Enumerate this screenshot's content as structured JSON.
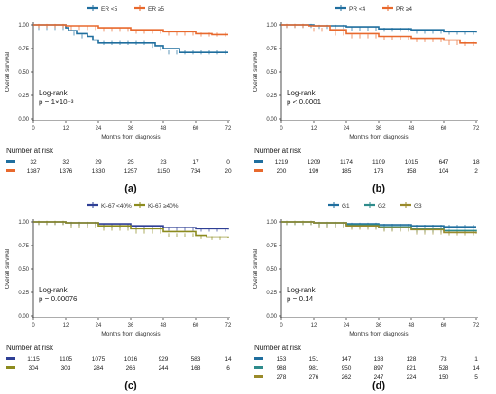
{
  "chart_data": [
    {
      "panel": "(a)",
      "type": "line",
      "title": "",
      "xlabel": "Months from diagnosis",
      "ylabel": "Overall survival",
      "xlim": [
        0,
        72
      ],
      "ylim": [
        0,
        1
      ],
      "xticks": [
        "0",
        "12",
        "24",
        "36",
        "48",
        "60",
        "72"
      ],
      "yticks": [
        "0.00",
        "0.25",
        "0.50",
        "0.75",
        "1.00"
      ],
      "legend_position": "top",
      "annotation": [
        "Log-rank",
        "p = 1×10⁻³"
      ],
      "risk_table_title": "Number at risk",
      "series": [
        {
          "name": "ER <5",
          "color": "#1f6e9e",
          "points": [
            [
              0,
              1.0
            ],
            [
              12,
              0.97
            ],
            [
              13,
              0.94
            ],
            [
              16,
              0.91
            ],
            [
              20,
              0.88
            ],
            [
              22,
              0.84
            ],
            [
              24,
              0.81
            ],
            [
              42,
              0.81
            ],
            [
              45,
              0.78
            ],
            [
              48,
              0.75
            ],
            [
              54,
              0.71
            ],
            [
              72,
              0.71
            ]
          ],
          "at_risk": [
            "32",
            "32",
            "29",
            "25",
            "23",
            "17",
            "0"
          ]
        },
        {
          "name": "ER ≥5",
          "color": "#e8692d",
          "points": [
            [
              0,
              1.0
            ],
            [
              12,
              0.99
            ],
            [
              24,
              0.97
            ],
            [
              36,
              0.95
            ],
            [
              48,
              0.93
            ],
            [
              60,
              0.91
            ],
            [
              66,
              0.9
            ],
            [
              72,
              0.9
            ]
          ],
          "at_risk": [
            "1387",
            "1376",
            "1330",
            "1257",
            "1150",
            "734",
            "20"
          ]
        }
      ]
    },
    {
      "panel": "(b)",
      "type": "line",
      "title": "",
      "xlabel": "Months from diagnosis",
      "ylabel": "Overall survival",
      "xlim": [
        0,
        72
      ],
      "ylim": [
        0,
        1
      ],
      "xticks": [
        "0",
        "12",
        "24",
        "36",
        "48",
        "60",
        "72"
      ],
      "yticks": [
        "0.00",
        "0.25",
        "0.50",
        "0.75",
        "1.00"
      ],
      "legend_position": "top",
      "annotation": [
        "Log-rank",
        "p < 0.0001"
      ],
      "risk_table_title": "Number at risk",
      "series": [
        {
          "name": "PR <4",
          "color": "#1f6e9e",
          "points": [
            [
              0,
              1.0
            ],
            [
              12,
              0.99
            ],
            [
              24,
              0.98
            ],
            [
              36,
              0.96
            ],
            [
              48,
              0.95
            ],
            [
              60,
              0.93
            ],
            [
              72,
              0.92
            ]
          ],
          "at_risk": [
            "1219",
            "1209",
            "1174",
            "1109",
            "1015",
            "647",
            "18"
          ]
        },
        {
          "name": "PR ≥4",
          "color": "#e8692d",
          "points": [
            [
              0,
              1.0
            ],
            [
              10,
              0.99
            ],
            [
              18,
              0.95
            ],
            [
              24,
              0.91
            ],
            [
              36,
              0.88
            ],
            [
              48,
              0.86
            ],
            [
              60,
              0.84
            ],
            [
              66,
              0.81
            ],
            [
              72,
              0.8
            ]
          ],
          "at_risk": [
            "200",
            "199",
            "185",
            "173",
            "158",
            "104",
            "2"
          ]
        }
      ]
    },
    {
      "panel": "(c)",
      "type": "line",
      "title": "",
      "xlabel": "Months from diagnosis",
      "ylabel": "Overall survival",
      "xlim": [
        0,
        72
      ],
      "ylim": [
        0,
        1
      ],
      "xticks": [
        "0",
        "12",
        "24",
        "36",
        "48",
        "60",
        "72"
      ],
      "yticks": [
        "0.00",
        "0.25",
        "0.50",
        "0.75",
        "1.00"
      ],
      "legend_position": "top",
      "annotation": [
        "Log-rank",
        "p = 0.00076"
      ],
      "risk_table_title": "Number at risk",
      "series": [
        {
          "name": "Ki-67 <40%",
          "color": "#2e3f95",
          "points": [
            [
              0,
              1.0
            ],
            [
              12,
              0.99
            ],
            [
              24,
              0.98
            ],
            [
              36,
              0.96
            ],
            [
              48,
              0.94
            ],
            [
              60,
              0.93
            ],
            [
              72,
              0.92
            ]
          ],
          "at_risk": [
            "1115",
            "1105",
            "1075",
            "1016",
            "929",
            "583",
            "14"
          ]
        },
        {
          "name": "Ki-67 ≥40%",
          "color": "#8c8b1e",
          "points": [
            [
              0,
              1.0
            ],
            [
              12,
              0.99
            ],
            [
              24,
              0.96
            ],
            [
              36,
              0.93
            ],
            [
              48,
              0.9
            ],
            [
              60,
              0.86
            ],
            [
              64,
              0.84
            ],
            [
              72,
              0.83
            ]
          ],
          "at_risk": [
            "304",
            "303",
            "284",
            "266",
            "244",
            "168",
            "6"
          ]
        }
      ]
    },
    {
      "panel": "(d)",
      "type": "line",
      "title": "",
      "xlabel": "Months from diagnosis",
      "ylabel": "Overall survival",
      "xlim": [
        0,
        72
      ],
      "ylim": [
        0,
        1
      ],
      "xticks": [
        "0",
        "12",
        "24",
        "36",
        "48",
        "60",
        "72"
      ],
      "yticks": [
        "0.00",
        "0.25",
        "0.50",
        "0.75",
        "1.00"
      ],
      "legend_position": "top",
      "annotation": [
        "Log-rank",
        "p = 0.14"
      ],
      "risk_table_title": "Number at risk",
      "series": [
        {
          "name": "G1",
          "color": "#1f6e9e",
          "points": [
            [
              0,
              1.0
            ],
            [
              12,
              0.99
            ],
            [
              24,
              0.98
            ],
            [
              36,
              0.97
            ],
            [
              48,
              0.96
            ],
            [
              60,
              0.95
            ],
            [
              72,
              0.95
            ]
          ],
          "at_risk": [
            "153",
            "151",
            "147",
            "138",
            "128",
            "73",
            "1"
          ]
        },
        {
          "name": "G2",
          "color": "#2e8b8b",
          "points": [
            [
              0,
              1.0
            ],
            [
              12,
              0.99
            ],
            [
              24,
              0.97
            ],
            [
              36,
              0.95
            ],
            [
              48,
              0.93
            ],
            [
              60,
              0.91
            ],
            [
              72,
              0.9
            ]
          ],
          "at_risk": [
            "988",
            "981",
            "950",
            "897",
            "821",
            "528",
            "14"
          ]
        },
        {
          "name": "G3",
          "color": "#9a8a2a",
          "points": [
            [
              0,
              1.0
            ],
            [
              12,
              0.99
            ],
            [
              24,
              0.96
            ],
            [
              36,
              0.94
            ],
            [
              48,
              0.92
            ],
            [
              60,
              0.89
            ],
            [
              72,
              0.88
            ]
          ],
          "at_risk": [
            "278",
            "276",
            "262",
            "247",
            "224",
            "150",
            "5"
          ]
        }
      ]
    }
  ]
}
